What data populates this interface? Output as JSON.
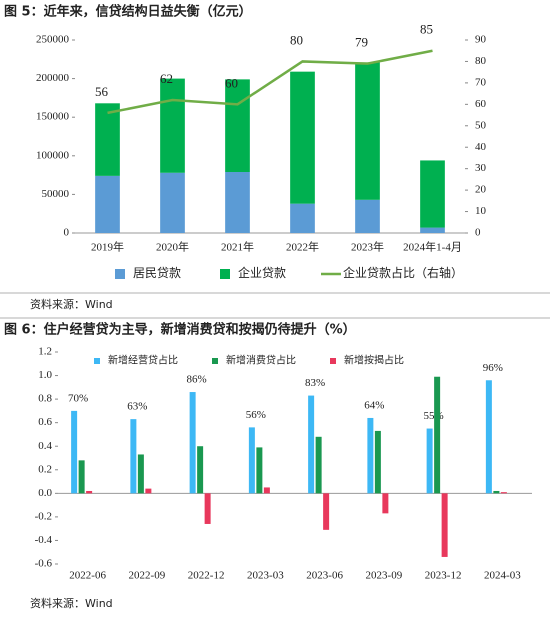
{
  "chart_data": [
    {
      "type": "bar",
      "stacked": true,
      "title": "图 5：近年来，信贷结构日益失衡（亿元）",
      "source": "资料来源：Wind",
      "categories": [
        "2019年",
        "2020年",
        "2021年",
        "2022年",
        "2023年",
        "2024年1-4月"
      ],
      "series": [
        {
          "name": "居民贷款",
          "color": "#5b9bd5",
          "values": [
            74000,
            78000,
            79000,
            38000,
            43000,
            7000
          ]
        },
        {
          "name": "企业贷款",
          "color": "#00b050",
          "values": [
            94000,
            122000,
            120000,
            171000,
            178000,
            87000
          ]
        },
        {
          "name": "企业贷款占比（右轴）",
          "color": "#70ad47",
          "type": "line",
          "axis": "y2",
          "values": [
            56,
            62,
            60,
            80,
            79,
            85
          ]
        }
      ],
      "ylim": [
        0,
        250000
      ],
      "yticks": [
        0,
        50000,
        100000,
        150000,
        200000,
        250000
      ],
      "y2lim": [
        0,
        90
      ],
      "y2ticks": [
        0,
        10,
        20,
        30,
        40,
        50,
        60,
        70,
        80,
        90
      ],
      "legend": "bottom"
    },
    {
      "type": "bar",
      "stacked": false,
      "title": "图 6：住户经营贷为主导，新增消费贷和按揭仍待提升（%）",
      "source": "资料来源：Wind",
      "categories": [
        "2022-06",
        "2022-09",
        "2022-12",
        "2023-03",
        "2023-06",
        "2023-09",
        "2023-12",
        "2024-03"
      ],
      "series": [
        {
          "name": "新增经营贷占比",
          "color": "#3db8f5",
          "values": [
            0.7,
            0.63,
            0.86,
            0.56,
            0.83,
            0.64,
            0.55,
            0.96
          ],
          "value_labels": [
            "70%",
            "63%",
            "86%",
            "56%",
            "83%",
            "64%",
            "55%",
            "96%"
          ]
        },
        {
          "name": "新增消费贷占比",
          "color": "#1a9850",
          "values": [
            0.28,
            0.33,
            0.4,
            0.39,
            0.48,
            0.53,
            0.99,
            0.02
          ]
        },
        {
          "name": "新增按揭占比",
          "color": "#e8385c",
          "values": [
            0.02,
            0.04,
            -0.26,
            0.05,
            -0.31,
            -0.17,
            -0.54,
            0.01
          ]
        }
      ],
      "ylim": [
        -0.6,
        1.2
      ],
      "yticks": [
        -0.6,
        -0.4,
        -0.2,
        {
          "value": 0,
          "label": "0.0"
        },
        0.2,
        0.4,
        0.6,
        0.8,
        {
          "value": 1,
          "label": "1.0"
        },
        1.2
      ],
      "legend": "top"
    }
  ]
}
